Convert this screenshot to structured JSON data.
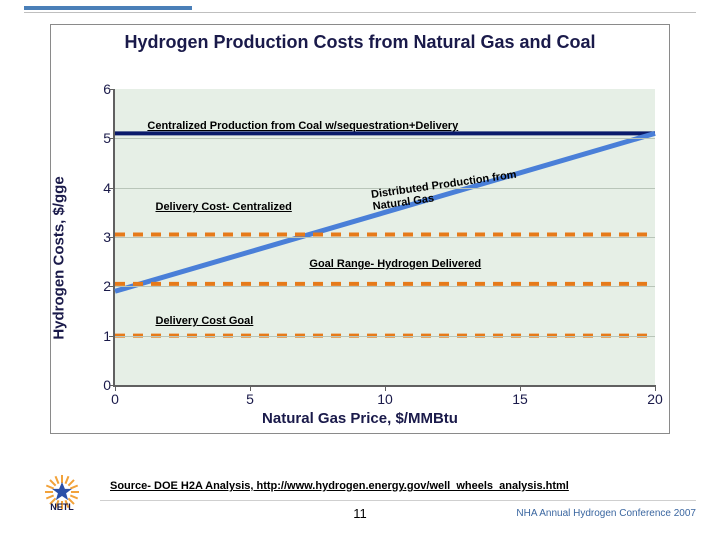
{
  "page": {
    "page_number": "11",
    "conference": "NHA Annual Hydrogen Conference 2007",
    "source_line": "Source- DOE H2A Analysis, http://www.hydrogen.energy.gov/well_wheels_analysis.html"
  },
  "chart": {
    "title": "Hydrogen Production Costs from Natural Gas and Coal",
    "xlabel": "Natural Gas Price, $/MMBtu",
    "ylabel": "Hydrogen Costs, $/gge",
    "background_color": "#e6efe6",
    "grid_color": "#b9c5b9",
    "axis_color": "#606060",
    "title_color": "#1a1a4a",
    "title_fontsize": 18,
    "label_fontsize": 15,
    "tick_fontsize": 14,
    "xlim": [
      0,
      20
    ],
    "ylim": [
      0,
      6
    ],
    "xtick_step": 5,
    "ytick_step": 1,
    "series": [
      {
        "name": "coal_sequestration",
        "label": "Centralized Production from Coal w/sequestration+Delivery",
        "color": "#0a1a6a",
        "width": 4,
        "dash": "none",
        "points": [
          [
            0,
            5.1
          ],
          [
            20,
            5.1
          ]
        ],
        "annot_xy": [
          1.2,
          5.25
        ]
      },
      {
        "name": "distributed_ng",
        "label": "Distributed Production from Natural Gas",
        "color": "#4a7fd8",
        "width": 5,
        "dash": "none",
        "points": [
          [
            0,
            1.9
          ],
          [
            20,
            5.1
          ]
        ],
        "annot_xy": [
          9.5,
          3.85
        ],
        "annot_rotate": true,
        "label_line2": "Natural Gas"
      },
      {
        "name": "delivery_centralized",
        "label": "Delivery Cost- Centralized",
        "color": "#e67a1a",
        "width": 4,
        "dash": "10,8",
        "points": [
          [
            0,
            3.05
          ],
          [
            20,
            3.05
          ]
        ],
        "annot_xy": [
          1.5,
          3.6
        ]
      },
      {
        "name": "goal_range",
        "label": "Goal Range- Hydrogen Delivered",
        "color": "#e67a1a",
        "width": 4,
        "dash": "10,8",
        "points": [
          [
            0,
            2.05
          ],
          [
            20,
            2.05
          ]
        ],
        "annot_xy": [
          7.2,
          2.45
        ]
      },
      {
        "name": "delivery_goal",
        "label": "Delivery Cost Goal",
        "color": "#e67a1a",
        "width": 4,
        "dash": "10,8",
        "points": [
          [
            0,
            1.0
          ],
          [
            20,
            1.0
          ]
        ],
        "annot_xy": [
          1.5,
          1.3
        ]
      }
    ]
  },
  "logo": {
    "text": "NETL",
    "star_color": "#2a4fa8",
    "burst_color": "#f2a23a"
  }
}
